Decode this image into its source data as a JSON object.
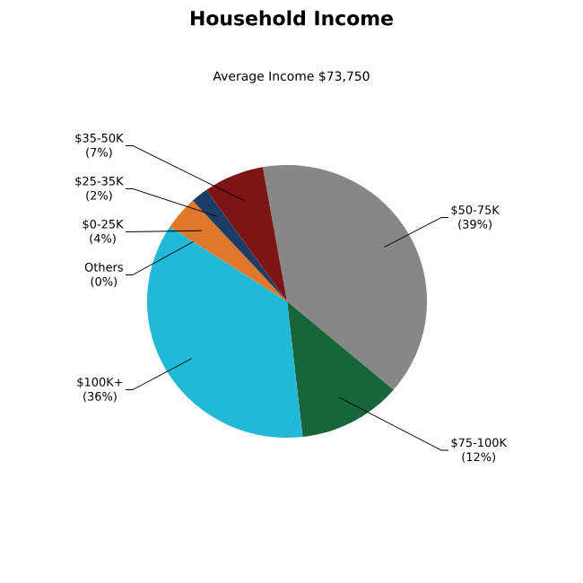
{
  "chart_data": {
    "type": "pie",
    "title": "Household Income",
    "subtitle": "Average Income  $73,750",
    "categories": [
      "$50-75K",
      "$75-100K",
      "$100K+",
      "Others",
      "$0-25K",
      "$25-35K",
      "$35-50K"
    ],
    "values": [
      39,
      12,
      36,
      0,
      4,
      2,
      7
    ],
    "value_labels": [
      "(39%)",
      "(12%)",
      "(36%)",
      "(0%)",
      "(4%)",
      "(2%)",
      "(7%)"
    ],
    "colors": [
      "#878787",
      "#17653a",
      "#22b9d6",
      "#9a9a9a",
      "#e0782a",
      "#1b3d66",
      "#7d1416"
    ]
  }
}
